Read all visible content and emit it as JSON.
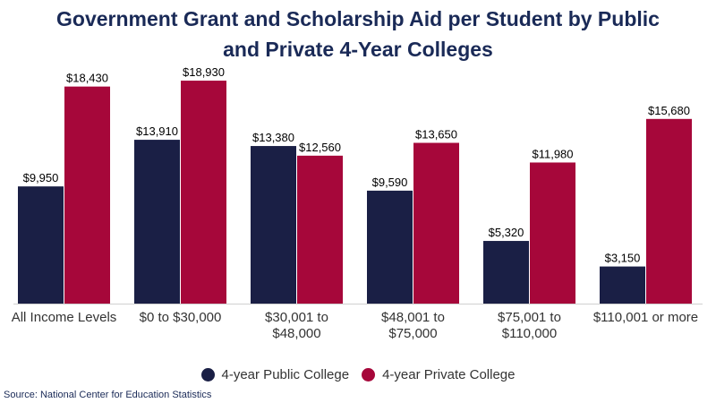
{
  "chart_data": {
    "type": "bar",
    "title_lines": [
      "Government Grant and Scholarship Aid per Student by Public",
      "and Private 4-Year Colleges"
    ],
    "categories": [
      [
        "All Income Levels"
      ],
      [
        "$0 to $30,000"
      ],
      [
        "$30,001 to",
        "$48,000"
      ],
      [
        "$48,001 to",
        "$75,000"
      ],
      [
        "$75,001 to",
        "$110,000"
      ],
      [
        "$110,001 or more"
      ]
    ],
    "series": [
      {
        "name": "4-year Public College",
        "color": "#1a1f45",
        "values": [
          9950,
          13910,
          13380,
          9590,
          5320,
          3150
        ],
        "labels": [
          "$9,950",
          "$13,910",
          "$13,380",
          "$9,590",
          "$5,320",
          "$3,150"
        ]
      },
      {
        "name": "4-year Private College",
        "color": "#a6073a",
        "values": [
          18430,
          18930,
          12560,
          13650,
          11980,
          15680
        ],
        "labels": [
          "$18,430",
          "$18,930",
          "$12,560",
          "$13,650",
          "$11,980",
          "$15,680"
        ]
      }
    ],
    "ylim": [
      0,
      20000
    ],
    "grid": false,
    "legend_position": "bottom",
    "source": "Source: National Center for Education Statistics"
  }
}
